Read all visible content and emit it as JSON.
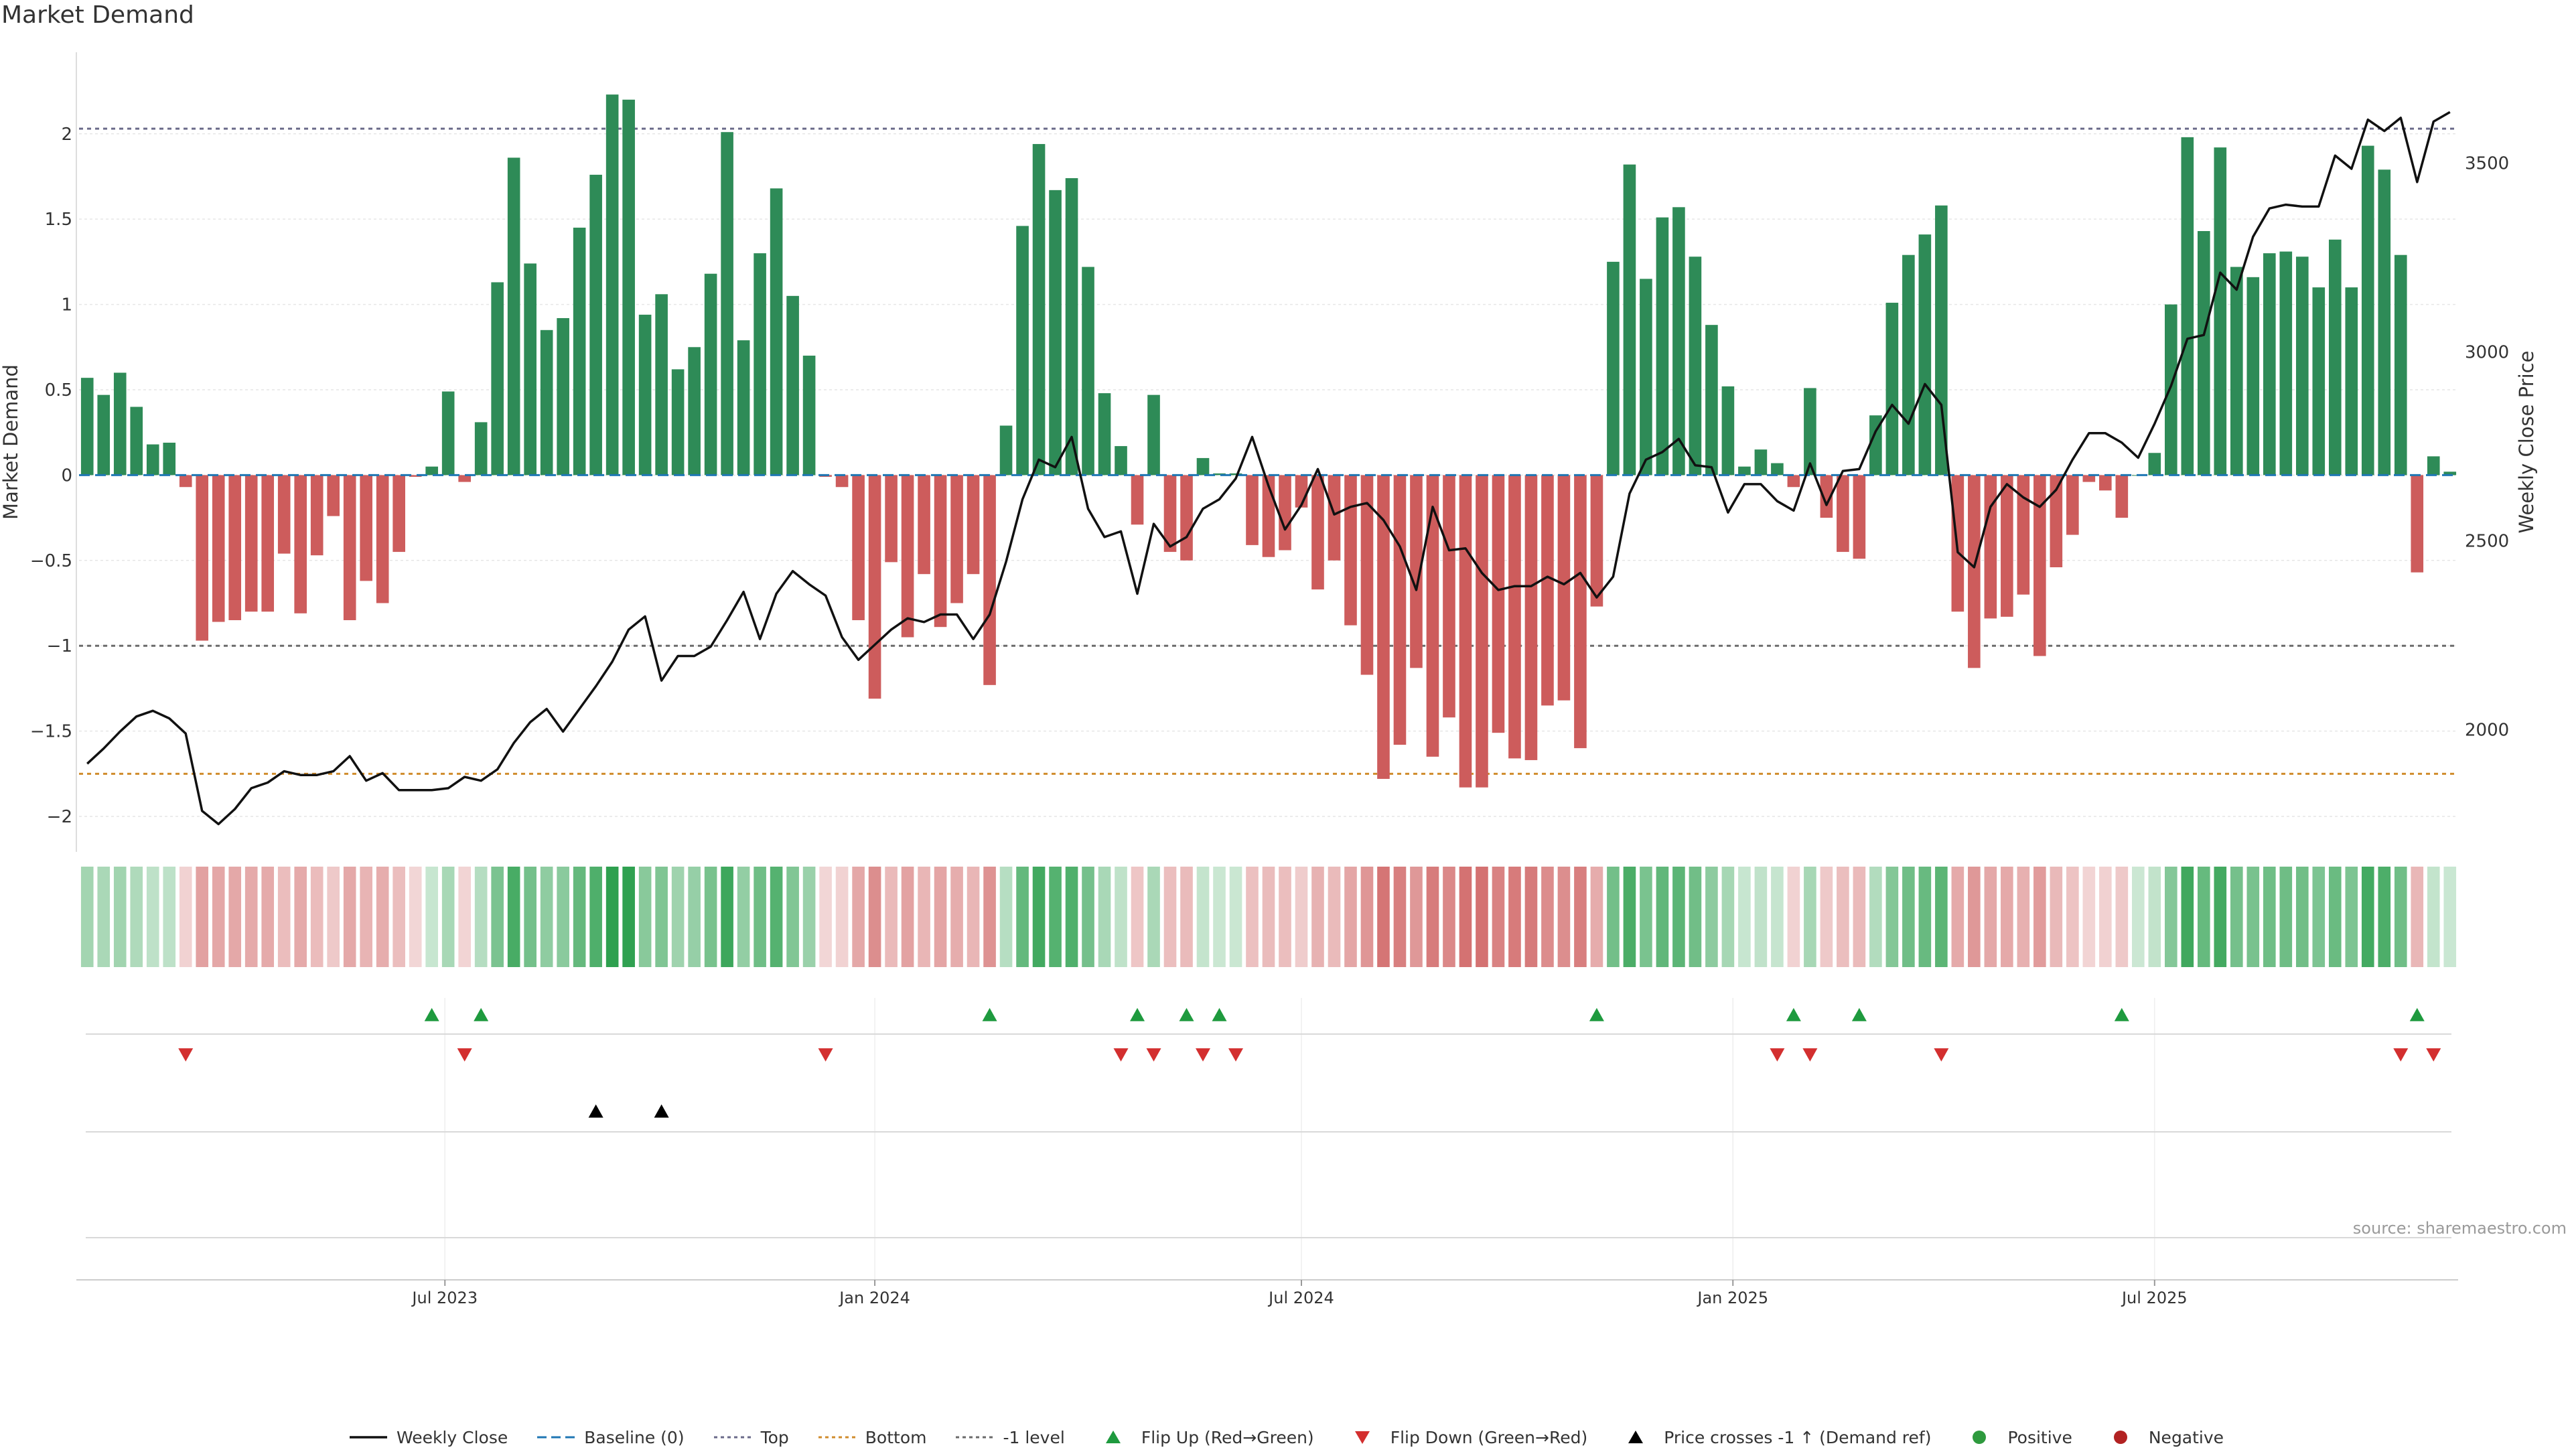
{
  "title": "Market Demand",
  "source": "source: sharemaestro.com",
  "colors": {
    "positive": "#2e8b57",
    "negative": "#cd5c5c",
    "price": "#111111",
    "baseline": "#1f77b4",
    "top": "#6b6b8a",
    "bottom": "#d08c2c",
    "minus_one": "#6b6b6b",
    "flip_up": "#1e9a3e",
    "flip_down": "#d32f2f",
    "cross": "#000000",
    "dot_positive": "#2e9a3e",
    "dot_negative": "#b22222"
  },
  "legend": [
    {
      "key": "price",
      "label": "Weekly Close"
    },
    {
      "key": "baseline",
      "label": "Baseline (0)"
    },
    {
      "key": "top",
      "label": "Top"
    },
    {
      "key": "bottom",
      "label": "Bottom"
    },
    {
      "key": "minus_one",
      "label": "-1 level"
    },
    {
      "key": "flip_up",
      "label": "Flip Up (Red→Green)"
    },
    {
      "key": "flip_down",
      "label": "Flip Down (Green→Red)"
    },
    {
      "key": "cross",
      "label": "Price crosses -1 ↑ (Demand ref)"
    },
    {
      "key": "dot_positive",
      "label": "Positive"
    },
    {
      "key": "dot_negative",
      "label": "Negative"
    }
  ],
  "chart_data": {
    "type": "bar",
    "ylabel": "Market Demand",
    "y2label": "Weekly Close Price",
    "ylim": [
      -2.2,
      2.47
    ],
    "y2lim": [
      1680,
      3790
    ],
    "y_ticks": [
      {
        "value": 2,
        "label": "2"
      },
      {
        "value": 1.5,
        "label": "1.5"
      },
      {
        "value": 1,
        "label": "1"
      },
      {
        "value": 0.5,
        "label": "0.5"
      },
      {
        "value": 0,
        "label": "0"
      },
      {
        "value": -0.5,
        "label": "−0.5"
      },
      {
        "value": -1,
        "label": "−1"
      },
      {
        "value": -1.5,
        "label": "−1.5"
      },
      {
        "value": -2,
        "label": "−2"
      }
    ],
    "y2_ticks": [
      {
        "value": 3500,
        "label": "3500"
      },
      {
        "value": 3000,
        "label": "3000"
      },
      {
        "value": 2500,
        "label": "2500"
      },
      {
        "value": 2000,
        "label": "2000"
      }
    ],
    "x_ticks": [
      {
        "week": 21.8,
        "label": "Jul 2023"
      },
      {
        "week": 48,
        "label": "Jan 2024"
      },
      {
        "week": 74,
        "label": "Jul 2024"
      },
      {
        "week": 100.3,
        "label": "Jan 2025"
      },
      {
        "week": 126,
        "label": "Jul 2025"
      }
    ],
    "reference_lines": {
      "top": 2.03,
      "bottom": -1.75,
      "minus_one": -1,
      "baseline": 0
    },
    "demand": [
      0.57,
      0.47,
      0.6,
      0.4,
      0.18,
      0.19,
      -0.07,
      -0.97,
      -0.86,
      -0.85,
      -0.8,
      -0.8,
      -0.46,
      -0.81,
      -0.47,
      -0.24,
      -0.85,
      -0.62,
      -0.75,
      -0.45,
      -0.01,
      0.05,
      0.49,
      -0.04,
      0.31,
      1.13,
      1.86,
      1.24,
      0.85,
      0.92,
      1.45,
      1.76,
      2.23,
      2.2,
      0.94,
      1.06,
      0.62,
      0.75,
      1.18,
      2.01,
      0.79,
      1.3,
      1.68,
      1.05,
      0.7,
      -0.01,
      -0.07,
      -0.85,
      -1.31,
      -0.51,
      -0.95,
      -0.58,
      -0.89,
      -0.75,
      -0.58,
      -1.23,
      0.29,
      1.46,
      1.94,
      1.67,
      1.74,
      1.22,
      0.48,
      0.17,
      -0.29,
      0.47,
      -0.45,
      -0.5,
      0.1,
      0.01,
      0.01,
      -0.41,
      -0.48,
      -0.44,
      -0.19,
      -0.67,
      -0.5,
      -0.88,
      -1.17,
      -1.78,
      -1.58,
      -1.13,
      -1.65,
      -1.42,
      -1.83,
      -1.83,
      -1.51,
      -1.66,
      -1.67,
      -1.35,
      -1.32,
      -1.6,
      -0.77,
      1.25,
      1.82,
      1.15,
      1.51,
      1.57,
      1.28,
      0.88,
      0.52,
      0.05,
      0.15,
      0.07,
      -0.07,
      0.51,
      -0.25,
      -0.45,
      -0.49,
      0.35,
      1.01,
      1.29,
      1.41,
      1.58,
      -0.8,
      -1.13,
      -0.84,
      -0.83,
      -0.7,
      -1.06,
      -0.54,
      -0.35,
      -0.04,
      -0.09,
      -0.25,
      0.0,
      0.13,
      1.0,
      1.98,
      1.43,
      1.92,
      1.22,
      1.16,
      1.3,
      1.31,
      1.28,
      1.1,
      1.38,
      1.1,
      1.93,
      1.79,
      1.29,
      -0.57,
      0.11,
      0.02
    ],
    "price": [
      1910,
      1950,
      1995,
      2035,
      2050,
      2030,
      1990,
      1785,
      1750,
      1790,
      1845,
      1860,
      1890,
      1880,
      1880,
      1890,
      1930,
      1865,
      1885,
      1840,
      1840,
      1840,
      1845,
      1875,
      1865,
      1895,
      1965,
      2020,
      2055,
      1995,
      2055,
      2115,
      2180,
      2265,
      2300,
      2130,
      2195,
      2195,
      2220,
      2290,
      2365,
      2240,
      2360,
      2420,
      2385,
      2355,
      2245,
      2185,
      2225,
      2265,
      2295,
      2285,
      2305,
      2305,
      2240,
      2305,
      2445,
      2610,
      2715,
      2695,
      2775,
      2585,
      2510,
      2525,
      2360,
      2545,
      2485,
      2510,
      2585,
      2610,
      2665,
      2775,
      2645,
      2530,
      2595,
      2690,
      2570,
      2590,
      2600,
      2555,
      2485,
      2370,
      2590,
      2475,
      2480,
      2415,
      2370,
      2380,
      2380,
      2405,
      2385,
      2415,
      2350,
      2405,
      2625,
      2715,
      2735,
      2770,
      2700,
      2695,
      2575,
      2650,
      2650,
      2605,
      2580,
      2705,
      2595,
      2685,
      2690,
      2790,
      2860,
      2810,
      2915,
      2860,
      2470,
      2430,
      2590,
      2650,
      2615,
      2590,
      2635,
      2715,
      2785,
      2785,
      2760,
      2720,
      2810,
      2910,
      3035,
      3045,
      3210,
      3165,
      3305,
      3380,
      3390,
      3385,
      3385,
      3520,
      3485,
      3615,
      3585,
      3620,
      3450,
      3610,
      3635
    ],
    "flip_up_weeks": [
      21,
      24,
      55,
      64,
      67,
      69,
      92,
      104,
      108,
      124,
      142
    ],
    "flip_down_weeks": [
      6,
      23,
      45,
      63,
      65,
      68,
      70,
      103,
      105,
      113,
      141,
      143
    ],
    "price_cross_weeks": [
      31,
      35
    ]
  }
}
